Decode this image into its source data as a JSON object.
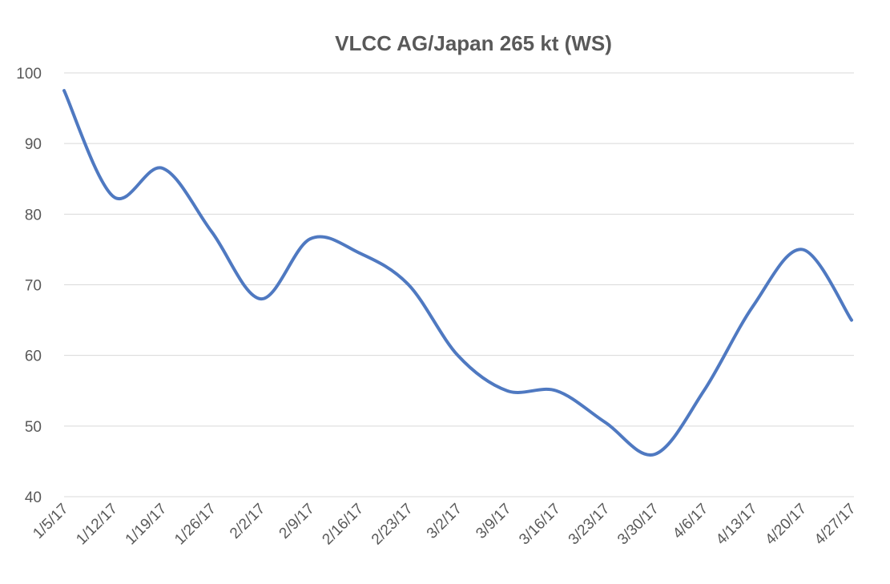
{
  "chart_data": {
    "type": "line",
    "title": "VLCC AG/Japan 265 kt (WS)",
    "xlabel": "",
    "ylabel": "",
    "categories": [
      "1/5/17",
      "1/12/17",
      "1/19/17",
      "1/26/17",
      "2/2/17",
      "2/9/17",
      "2/16/17",
      "2/23/17",
      "3/2/17",
      "3/9/17",
      "3/16/17",
      "3/23/17",
      "3/30/17",
      "4/6/17",
      "4/13/17",
      "4/20/17",
      "4/27/17"
    ],
    "series": [
      {
        "values": [
          97.5,
          82.5,
          86.5,
          77.5,
          68,
          76.5,
          74.5,
          70,
          60,
          55,
          55,
          50.5,
          46,
          55,
          67,
          75,
          65
        ],
        "color": "#4f79c1"
      }
    ],
    "ylim": [
      40,
      100
    ],
    "yticks": [
      40,
      50,
      60,
      70,
      80,
      90,
      100
    ],
    "grid": true,
    "legend": "none"
  }
}
